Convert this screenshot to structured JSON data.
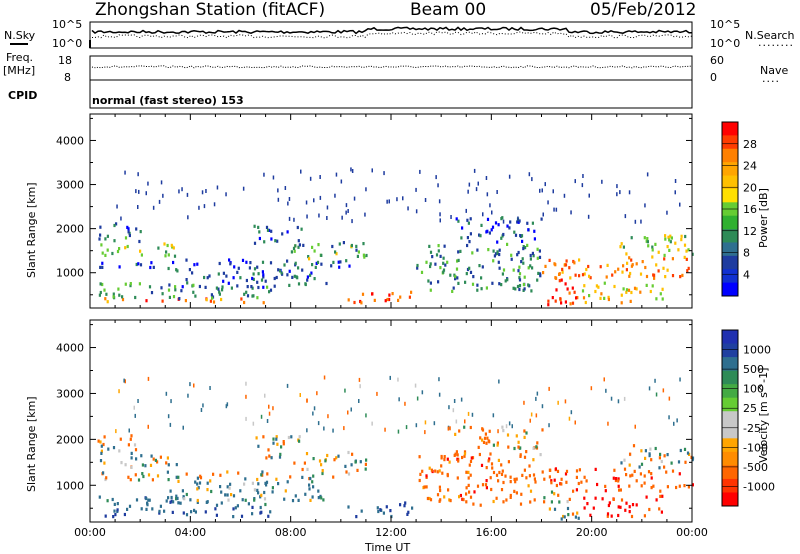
{
  "header": {
    "station": "Zhongshan Station (fitACF)",
    "beam": "Beam 00",
    "date": "05/Feb/2012"
  },
  "noise_panel": {
    "left_label": "N.Sky",
    "left_ticks": [
      "10^5",
      "10^0"
    ],
    "right_label": "N.Search",
    "right_ticks": [
      "10^5",
      "10^0"
    ],
    "right_legend": "........",
    "series_levels_frac": [
      0.62,
      0.45
    ]
  },
  "freq_panel": {
    "left_label_1": "Freq.",
    "left_label_2": "[MHz]",
    "left_ticks": [
      "18",
      "8"
    ],
    "right_label": "Nave",
    "right_ticks": [
      "60",
      "0"
    ],
    "right_legend": "....",
    "cpid_label": "CPID",
    "level_frac": 0.55
  },
  "mode_text": "normal (fast stereo) 153",
  "chart_data": [
    {
      "type": "heatmap",
      "title": "",
      "xlabel": "Time UT",
      "ylabel": "Slant Range [km]",
      "x_ticks": [
        "00:00",
        "04:00",
        "08:00",
        "12:00",
        "16:00",
        "20:00",
        "00:00"
      ],
      "x_range_hours": [
        0,
        24
      ],
      "y_ticks": [
        1000,
        2000,
        3000,
        4000
      ],
      "ylim": [
        200,
        4600
      ],
      "colorbar": {
        "label": "Power [dB]",
        "ticks": [
          "28",
          "24",
          "20",
          "16",
          "12",
          "8",
          "4"
        ],
        "colors": [
          "#ff0000",
          "#ff3c00",
          "#ff8000",
          "#ffc000",
          "#ffff00",
          "#80e040",
          "#30b030",
          "#2e8b57",
          "#2f6f8f",
          "#1e3c9f",
          "#0000ff"
        ],
        "range": [
          0,
          30
        ]
      }
    },
    {
      "type": "heatmap",
      "title": "",
      "xlabel": "Time UT",
      "ylabel": "Slant Range [km]",
      "x_ticks": [
        "00:00",
        "04:00",
        "08:00",
        "12:00",
        "16:00",
        "20:00",
        "00:00"
      ],
      "x_range_hours": [
        0,
        24
      ],
      "y_ticks": [
        1000,
        2000,
        3000,
        4000
      ],
      "ylim": [
        200,
        4600
      ],
      "colorbar": {
        "label": "Velocity [m s^-1]",
        "ticks": [
          "1000",
          "500",
          "100",
          "25",
          "-25",
          "-100",
          "-500",
          "-1000"
        ],
        "colors": [
          "#1e3c9f",
          "#2f6f8f",
          "#2e8b57",
          "#66cc33",
          "#c8c8c8",
          "#ffa500",
          "#ff6600",
          "#ff0000"
        ]
      }
    }
  ],
  "scatter_regions": [
    {
      "t0": 0.3,
      "t1": 7.2,
      "r0": 350,
      "r1": 450,
      "p": 24,
      "v": 700
    },
    {
      "t0": 0.3,
      "t1": 7.2,
      "r0": 450,
      "r1": 800,
      "p": 10,
      "v": 300
    },
    {
      "t0": 0.3,
      "t1": 10.5,
      "r0": 1150,
      "r1": 1330,
      "p": 6,
      "v": -80
    },
    {
      "t0": 0.3,
      "t1": 3.5,
      "r0": 1400,
      "r1": 1700,
      "p": 14,
      "v": 0
    },
    {
      "t0": 0.3,
      "t1": 2.0,
      "r0": 1700,
      "r1": 2150,
      "p": 8,
      "v": 0
    },
    {
      "t0": 3.0,
      "t1": 9.5,
      "r0": 700,
      "r1": 1150,
      "p": 7,
      "v": 150
    },
    {
      "t0": 8.0,
      "t1": 11.0,
      "r0": 1350,
      "r1": 1750,
      "p": 12,
      "v": 0
    },
    {
      "t0": 6.5,
      "t1": 8.5,
      "r0": 1600,
      "r1": 2100,
      "p": 6,
      "v": 0
    },
    {
      "t0": 10.2,
      "t1": 12.8,
      "r0": 350,
      "r1": 650,
      "p": 26,
      "v": 500
    },
    {
      "t0": 13.0,
      "t1": 18.0,
      "r0": 600,
      "r1": 1700,
      "p": 9,
      "v": -300
    },
    {
      "t0": 14.5,
      "t1": 18.0,
      "r0": 1700,
      "r1": 2300,
      "p": 6,
      "v": -150
    },
    {
      "t0": 18.0,
      "t1": 19.5,
      "r0": 300,
      "r1": 900,
      "p": 28,
      "v": 0
    },
    {
      "t0": 18.0,
      "t1": 24.0,
      "r0": 900,
      "r1": 1400,
      "p": 22,
      "v": -400
    },
    {
      "t0": 19.5,
      "t1": 22.8,
      "r0": 350,
      "r1": 800,
      "p": 18,
      "v": -600
    },
    {
      "t0": 21.0,
      "t1": 24.0,
      "r0": 1400,
      "r1": 1900,
      "p": 14,
      "v": 0
    }
  ]
}
